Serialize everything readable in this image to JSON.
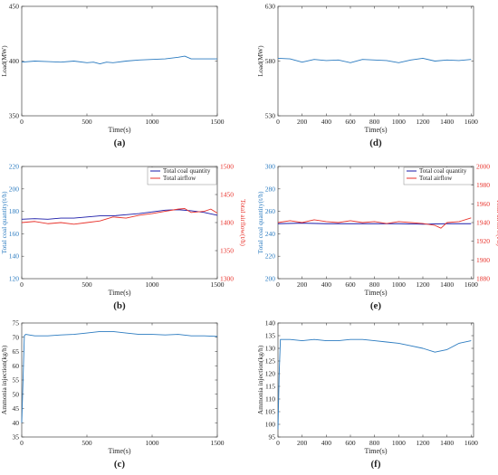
{
  "chart_data": [
    {
      "type": "line",
      "panel_label": "(a)",
      "xlabel": "Time(s)",
      "ylabel": "Load(MW)",
      "xlim": [
        0,
        1500
      ],
      "ylim": [
        350,
        450
      ],
      "xticks": [
        0,
        500,
        1000,
        1500
      ],
      "yticks": [
        350,
        400,
        450
      ],
      "series": [
        {
          "color": "#2b7bc0",
          "axis": "left",
          "x": [
            0,
            100,
            200,
            300,
            400,
            500,
            550,
            600,
            650,
            700,
            800,
            900,
            1000,
            1100,
            1200,
            1250,
            1300,
            1400,
            1500
          ],
          "y": [
            399,
            400,
            399.5,
            399,
            400,
            398.5,
            399,
            397.5,
            399,
            398.5,
            400,
            401,
            401.5,
            402,
            403.5,
            404.5,
            402,
            402,
            402
          ]
        }
      ]
    },
    {
      "type": "line",
      "panel_label": "(d)",
      "xlabel": "Time(s)",
      "ylabel": "Load(MW)",
      "xlim": [
        0,
        1620
      ],
      "ylim": [
        530,
        630
      ],
      "xticks": [
        0,
        200,
        400,
        600,
        800,
        1000,
        1200,
        1400,
        1600
      ],
      "yticks": [
        530,
        580,
        630
      ],
      "series": [
        {
          "color": "#2b7bc0",
          "axis": "left",
          "x": [
            0,
            100,
            200,
            300,
            400,
            500,
            600,
            700,
            800,
            900,
            1000,
            1100,
            1200,
            1300,
            1400,
            1500,
            1600
          ],
          "y": [
            582.5,
            582,
            579,
            581.5,
            580.5,
            581,
            578.5,
            581.5,
            581,
            580.5,
            578.5,
            581,
            582.5,
            580,
            581,
            580.5,
            581.5
          ]
        }
      ]
    },
    {
      "type": "line",
      "panel_label": "(b)",
      "xlabel": "Time(s)",
      "ylabel": "Total coal quantity(t/h)",
      "y2label": "Total airflow(t/h)",
      "xlim": [
        0,
        1500
      ],
      "ylim": [
        120,
        220
      ],
      "y2lim": [
        1300,
        1500
      ],
      "xticks": [
        0,
        500,
        1000,
        1500
      ],
      "yticks": [
        120,
        140,
        160,
        180,
        200,
        220
      ],
      "y2ticks": [
        1300,
        1350,
        1400,
        1450,
        1500
      ],
      "legend": "top-right",
      "series": [
        {
          "name": "Total coal quantity",
          "color": "#1a1aa8",
          "axis": "left",
          "x": [
            0,
            100,
            200,
            300,
            400,
            500,
            600,
            700,
            800,
            900,
            1000,
            1100,
            1200,
            1300,
            1400,
            1500
          ],
          "y": [
            173,
            173.5,
            173,
            174,
            174,
            175,
            176,
            176,
            177,
            178,
            179.5,
            181,
            181.5,
            180.5,
            179,
            176.5
          ]
        },
        {
          "name": "Total airflow",
          "color": "#e8322b",
          "axis": "right",
          "x": [
            0,
            100,
            200,
            300,
            400,
            500,
            600,
            700,
            800,
            900,
            1000,
            1100,
            1200,
            1250,
            1300,
            1400,
            1450,
            1500
          ],
          "y": [
            1400,
            1402,
            1398,
            1400,
            1397,
            1400,
            1403,
            1410,
            1408,
            1413,
            1416,
            1420,
            1424,
            1425,
            1418,
            1420,
            1424,
            1417
          ]
        }
      ]
    },
    {
      "type": "line",
      "panel_label": "(e)",
      "xlabel": "Time(s)",
      "ylabel": "Total coal quantity(t/h)",
      "y2label": "Total airflow(t/h)",
      "xlim": [
        0,
        1620
      ],
      "ylim": [
        200,
        300
      ],
      "y2lim": [
        1880,
        2000
      ],
      "xticks": [
        0,
        200,
        400,
        600,
        800,
        1000,
        1200,
        1400,
        1600
      ],
      "yticks": [
        200,
        220,
        240,
        260,
        280,
        300
      ],
      "y2ticks": [
        1880,
        1900,
        1920,
        1940,
        1960,
        1980,
        2000
      ],
      "legend": "top-right",
      "series": [
        {
          "name": "Total coal quantity",
          "color": "#1a1aa8",
          "axis": "left",
          "x": [
            0,
            200,
            400,
            600,
            800,
            1000,
            1200,
            1400,
            1600
          ],
          "y": [
            249,
            249.5,
            249,
            249,
            249,
            249,
            248.5,
            249,
            249
          ]
        },
        {
          "name": "Total airflow",
          "color": "#e8322b",
          "axis": "right",
          "x": [
            0,
            100,
            200,
            300,
            400,
            500,
            600,
            700,
            800,
            900,
            1000,
            1100,
            1200,
            1300,
            1350,
            1400,
            1500,
            1600
          ],
          "y": [
            1940,
            1942,
            1940,
            1943,
            1941,
            1940,
            1942,
            1940,
            1941,
            1939,
            1941,
            1940,
            1939,
            1937,
            1934,
            1940,
            1941,
            1945
          ]
        }
      ]
    },
    {
      "type": "line",
      "panel_label": "(c)",
      "xlabel": "Time(s)",
      "ylabel": "Ammonia injection(kg/h)",
      "xlim": [
        0,
        1500
      ],
      "ylim": [
        35,
        75
      ],
      "xticks": [
        0,
        500,
        1000,
        1500
      ],
      "yticks": [
        35,
        40,
        45,
        50,
        55,
        60,
        65,
        70,
        75
      ],
      "series": [
        {
          "color": "#2b7bc0",
          "axis": "left",
          "x": [
            0,
            10,
            20,
            30,
            100,
            200,
            300,
            400,
            500,
            600,
            700,
            800,
            900,
            1000,
            1100,
            1200,
            1300,
            1400,
            1500
          ],
          "y": [
            40,
            55,
            70.5,
            71,
            70.5,
            70.5,
            70.8,
            71,
            71.5,
            72,
            72,
            71.5,
            71,
            71,
            70.8,
            71,
            70.5,
            70.5,
            70.3
          ]
        }
      ]
    },
    {
      "type": "line",
      "panel_label": "(f)",
      "xlabel": "Time(s)",
      "ylabel": "Ammonia injection(kg/h)",
      "xlim": [
        0,
        1620
      ],
      "ylim": [
        95,
        140
      ],
      "xticks": [
        0,
        200,
        400,
        600,
        800,
        1000,
        1200,
        1400,
        1600
      ],
      "yticks": [
        95,
        100,
        105,
        110,
        115,
        120,
        125,
        130,
        135,
        140
      ],
      "series": [
        {
          "color": "#2b7bc0",
          "axis": "left",
          "x": [
            0,
            10,
            20,
            100,
            200,
            300,
            400,
            500,
            600,
            700,
            800,
            900,
            1000,
            1100,
            1200,
            1300,
            1400,
            1500,
            1600
          ],
          "y": [
            98,
            120,
            133.5,
            133.5,
            133,
            133.5,
            133,
            133,
            133.5,
            133.5,
            133,
            132.5,
            132,
            131,
            130,
            128.5,
            129.5,
            132,
            133
          ]
        }
      ]
    }
  ]
}
